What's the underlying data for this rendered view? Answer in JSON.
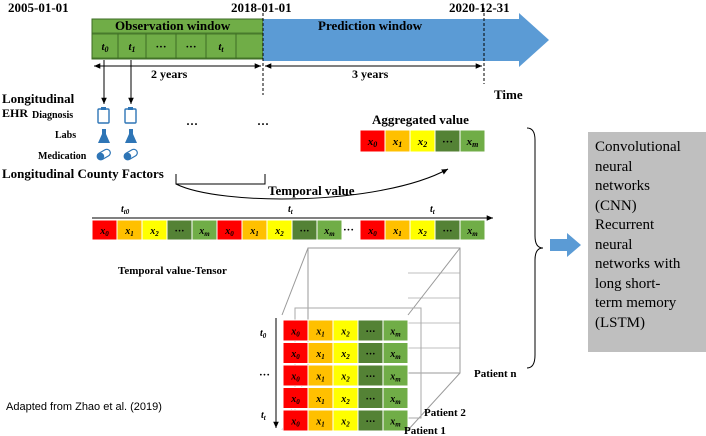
{
  "timeline": {
    "date_start": "2005-01-01",
    "date_split": "2018-01-01",
    "date_end": "2020-12-31",
    "observation_label": "Observation window",
    "prediction_label": "Prediction window",
    "obs_span": "2 years",
    "pred_span": "3 years",
    "time_label": "Time",
    "obs_ticks": [
      "t0",
      "t1",
      "···",
      "···",
      "tt"
    ],
    "colors": {
      "observation": "#70ad47",
      "prediction": "#5b9bd5"
    }
  },
  "ehr": {
    "title_line1": "Longitudinal",
    "title_line2": "EHR",
    "diagnosis": "Diagnosis",
    "labs": "Labs",
    "medication": "Medication",
    "ellipsis": "···",
    "county": "Longitudinal County Factors",
    "icons": [
      "clipboard-icon",
      "flask-icon",
      "pill-icon"
    ]
  },
  "aggregated": {
    "label": "Aggregated value",
    "cells": [
      "x0",
      "x1",
      "x2",
      "···",
      "xm"
    ]
  },
  "temporal": {
    "label": "Temporal value",
    "ticks": [
      "t0",
      "tt",
      "tt"
    ],
    "cells": [
      "x0",
      "x1",
      "x2",
      "···",
      "xm",
      "x0",
      "x1",
      "x2",
      "···",
      "xm",
      "x0",
      "x1",
      "x2",
      "···",
      "xm"
    ],
    "gap": "···"
  },
  "tensor": {
    "label": "Temporal value-Tensor",
    "rows": [
      "t0",
      "",
      "···",
      "",
      "tt"
    ],
    "cells": [
      "x0",
      "x1",
      "x2",
      "···",
      "xm"
    ],
    "patient_n": "Patient n",
    "patient_2": "Patient 2",
    "patient_1": "Patient 1"
  },
  "cell_colors": [
    "#ff0000",
    "#ffc000",
    "#ffff00",
    "#548235",
    "#70ad47"
  ],
  "model": {
    "lines": [
      "Convolutional",
      "neural",
      "networks",
      "(CNN)",
      "Recurrent",
      "neural",
      "networks with",
      "long short-",
      "term memory",
      "(LSTM)"
    ]
  },
  "credit": "Adapted from Zhao et al. (2019)"
}
